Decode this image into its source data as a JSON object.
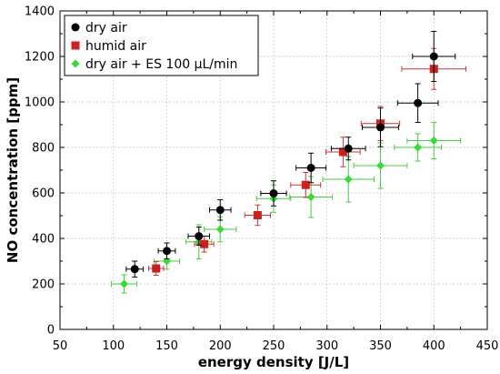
{
  "chart_data": {
    "type": "scatter",
    "xlabel": "energy density [J/L]",
    "ylabel": "NO concentration [ppm]",
    "xlim": [
      50,
      450
    ],
    "ylim": [
      0,
      1400
    ],
    "x_ticks": [
      50,
      100,
      150,
      200,
      250,
      300,
      350,
      400,
      450
    ],
    "y_ticks": [
      0,
      200,
      400,
      600,
      800,
      1000,
      1200,
      1400
    ],
    "grid": true,
    "legend_position": "top-left",
    "series": [
      {
        "name": "dry air",
        "marker": "circle",
        "color": "#000000",
        "errcolor": "#000000",
        "points": [
          {
            "x": 120,
            "y": 265,
            "xerr": 8,
            "yerr": 35
          },
          {
            "x": 150,
            "y": 345,
            "xerr": 8,
            "yerr": 35
          },
          {
            "x": 180,
            "y": 410,
            "xerr": 10,
            "yerr": 40
          },
          {
            "x": 200,
            "y": 525,
            "xerr": 10,
            "yerr": 45
          },
          {
            "x": 250,
            "y": 598,
            "xerr": 12,
            "yerr": 55
          },
          {
            "x": 285,
            "y": 710,
            "xerr": 14,
            "yerr": 65
          },
          {
            "x": 320,
            "y": 795,
            "xerr": 16,
            "yerr": 50
          },
          {
            "x": 350,
            "y": 888,
            "xerr": 17,
            "yerr": 85
          },
          {
            "x": 385,
            "y": 995,
            "xerr": 19,
            "yerr": 85
          },
          {
            "x": 400,
            "y": 1200,
            "xerr": 20,
            "yerr": 110
          }
        ]
      },
      {
        "name": "humid air",
        "marker": "square",
        "color": "#cc1f1f",
        "errcolor": "#cc3333",
        "points": [
          {
            "x": 140,
            "y": 268,
            "xerr": 7,
            "yerr": 30
          },
          {
            "x": 185,
            "y": 375,
            "xerr": 9,
            "yerr": 35
          },
          {
            "x": 235,
            "y": 502,
            "xerr": 12,
            "yerr": 45
          },
          {
            "x": 280,
            "y": 635,
            "xerr": 14,
            "yerr": 55
          },
          {
            "x": 315,
            "y": 780,
            "xerr": 16,
            "yerr": 65
          },
          {
            "x": 350,
            "y": 905,
            "xerr": 18,
            "yerr": 75
          },
          {
            "x": 400,
            "y": 1145,
            "xerr": 30,
            "yerr": 90
          }
        ]
      },
      {
        "name": "dry air + ES 100 µL/min",
        "marker": "diamond",
        "color": "#33dd33",
        "errcolor": "#44cc44",
        "points": [
          {
            "x": 110,
            "y": 200,
            "xerr": 12,
            "yerr": 40
          },
          {
            "x": 150,
            "y": 300,
            "xerr": 12,
            "yerr": 35
          },
          {
            "x": 180,
            "y": 385,
            "xerr": 12,
            "yerr": 75
          },
          {
            "x": 200,
            "y": 440,
            "xerr": 15,
            "yerr": 55
          },
          {
            "x": 250,
            "y": 575,
            "xerr": 16,
            "yerr": 60
          },
          {
            "x": 285,
            "y": 582,
            "xerr": 20,
            "yerr": 90
          },
          {
            "x": 320,
            "y": 660,
            "xerr": 24,
            "yerr": 100
          },
          {
            "x": 350,
            "y": 720,
            "xerr": 25,
            "yerr": 100
          },
          {
            "x": 385,
            "y": 800,
            "xerr": 22,
            "yerr": 60
          },
          {
            "x": 400,
            "y": 830,
            "xerr": 25,
            "yerr": 80
          }
        ]
      }
    ]
  }
}
